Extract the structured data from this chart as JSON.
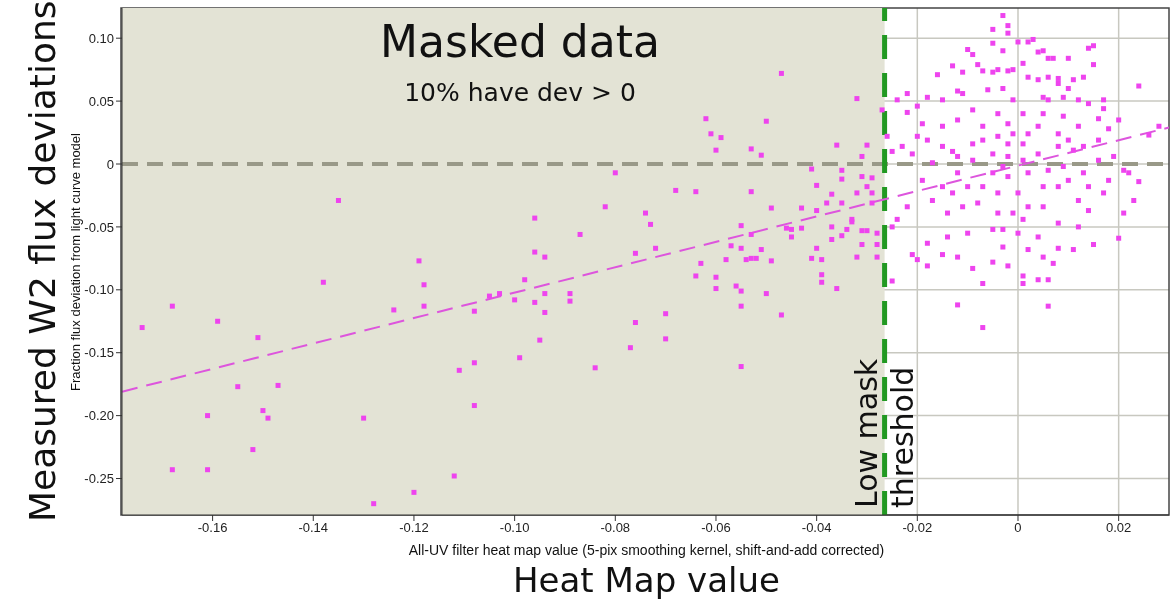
{
  "chart_data": {
    "type": "scatter",
    "xlabel": "All-UV filter heat map value (5-pix smoothing kernel, shift-and-add corrected)",
    "ylabel": "Fraction flux deviation from light curve model",
    "annotations": [
      "Masked data",
      "10% have dev > 0",
      "Measured W2 flux deviations",
      "Heat Map value"
    ],
    "xlim": [
      -0.178,
      0.03
    ],
    "ylim": [
      -0.279,
      0.124
    ],
    "xticks": [
      -0.16,
      -0.14,
      -0.12,
      {
        "value": -0.1,
        "label": "-0.10"
      },
      -0.08,
      -0.06,
      -0.04,
      -0.02,
      0,
      0.02
    ],
    "yticks": [
      {
        "value": 0.1,
        "label": "0.10"
      },
      0.05,
      0,
      -0.05,
      {
        "value": -0.1,
        "label": "-0.10"
      },
      -0.15,
      {
        "value": -0.2,
        "label": "-0.20"
      },
      -0.25
    ],
    "grid": true,
    "ref_lines": [
      {
        "axis": "y",
        "value": 0,
        "color": "#999988",
        "line_style": "dashed"
      },
      {
        "axis": "x",
        "value": -0.0265,
        "label": "Low mask threshold",
        "color": "#229922",
        "line_style": "dashed"
      }
    ],
    "bands": [
      {
        "axis": "x",
        "from": -0.178,
        "to": -0.0265,
        "color": "#e3e3d5"
      }
    ],
    "series": [
      {
        "color": "#ee44ee",
        "marker": "square",
        "x": [
          -0.174,
          -0.168,
          -0.159,
          -0.151,
          -0.155,
          -0.147,
          -0.161,
          -0.15,
          -0.149,
          -0.152,
          -0.168,
          -0.161,
          -0.135,
          -0.138,
          -0.124,
          -0.13,
          -0.128,
          -0.119,
          -0.118,
          -0.118,
          -0.12,
          -0.112,
          -0.111,
          -0.108,
          -0.108,
          -0.108,
          -0.105,
          -0.103,
          -0.1,
          -0.099,
          -0.098,
          -0.096,
          -0.096,
          -0.096,
          -0.047,
          -0.032,
          -0.027,
          -0.062,
          -0.05,
          -0.061,
          -0.059,
          -0.06,
          -0.053,
          -0.051,
          -0.036,
          -0.03,
          -0.031,
          -0.08,
          -0.041,
          -0.035,
          -0.035,
          -0.031,
          -0.029,
          -0.03,
          -0.068,
          -0.064,
          -0.053,
          -0.04,
          -0.037,
          -0.032,
          -0.029,
          -0.082,
          -0.049,
          -0.043,
          -0.04,
          -0.038,
          -0.035,
          -0.029,
          -0.074,
          -0.073,
          -0.055,
          -0.046,
          -0.045,
          -0.043,
          -0.037,
          -0.033,
          -0.033,
          -0.034,
          -0.087,
          -0.053,
          -0.045,
          -0.037,
          -0.035,
          -0.031,
          -0.03,
          -0.028,
          -0.057,
          -0.055,
          -0.051,
          -0.04,
          -0.031,
          -0.028,
          -0.094,
          -0.076,
          -0.072,
          -0.058,
          -0.054,
          -0.053,
          -0.052,
          -0.049,
          -0.041,
          -0.039,
          -0.032,
          -0.028,
          -0.063,
          -0.064,
          -0.06,
          -0.039,
          -0.039,
          -0.025,
          -0.06,
          -0.056,
          -0.055,
          -0.05,
          -0.036,
          -0.094,
          -0.089,
          -0.089,
          -0.094,
          -0.055,
          -0.047,
          -0.07,
          -0.076,
          -0.095,
          -0.07,
          -0.077,
          -0.084,
          -0.055,
          -0.003,
          -0.002,
          -0.005,
          -0.002,
          -0.005,
          -0.003,
          0,
          0.002,
          0.003,
          0.004,
          0.005,
          0.006,
          0.007,
          0.01,
          0.014,
          0.015,
          0.015,
          -0.01,
          -0.009,
          -0.013,
          -0.011,
          -0.008,
          -0.016,
          -0.007,
          -0.005,
          -0.004,
          -0.002,
          -0.001,
          0.001,
          0.002,
          0.004,
          0.006,
          0.008,
          0.01,
          0.013,
          0.024,
          0.017,
          0.017,
          0.02,
          -0.022,
          -0.024,
          -0.018,
          -0.02,
          -0.022,
          -0.015,
          -0.012,
          -0.011,
          -0.006,
          -0.003,
          -0.001,
          0.005,
          0.009,
          0.012,
          0.014,
          0.016,
          0.018,
          0.026,
          0.028,
          -0.026,
          -0.025,
          -0.023,
          -0.02,
          -0.018,
          -0.015,
          -0.013,
          -0.012,
          -0.009,
          -0.007,
          -0.004,
          -0.001,
          0.004,
          0.008,
          0.01,
          0.013,
          0.016,
          0.019,
          0.021,
          0.024,
          0.023,
          0.021,
          0.02,
          0.015,
          0.011,
          0.008,
          0.005,
          0.007,
          0.004,
          0.006,
          0.001,
          0.001,
          0.006,
          -0.002,
          -0.005,
          -0.007,
          -0.012,
          -0.007,
          -0.009,
          -0.012,
          -0.015,
          -0.018,
          -0.021,
          -0.02,
          -0.018,
          -0.025,
          -0.024,
          -0.022,
          -0.017,
          -0.014,
          -0.011,
          -0.01,
          -0.014,
          -0.005,
          -0.003,
          0,
          0.002,
          0.004,
          0.008,
          0.012,
          0.014,
          0.017,
          0.018,
          0.022,
          -0.019,
          -0.015,
          -0.012,
          -0.009,
          -0.005,
          -0.003,
          -0.002,
          0.001,
          0.004,
          0.002,
          0.006,
          0.009,
          0.005,
          0.008,
          0.01,
          0.013,
          0,
          -0.004,
          -0.007,
          -0.008,
          -0.004,
          -0.001,
          0.002,
          0.005,
          0.001,
          -0.003,
          -0.002,
          -0.005,
          -0.01,
          -0.013,
          -0.017,
          -0.021,
          0.012,
          0.014,
          0.016,
          0.011,
          0.008,
          0.001,
          -0.002,
          -0.007,
          -0.004,
          0.001,
          0.005,
          0.009,
          0.012,
          -0.009,
          -0.012,
          -0.015,
          -0.019,
          -0.002,
          0.002,
          0.006,
          0.008,
          0.011
        ],
        "values": [
          -0.13,
          -0.113,
          -0.125,
          -0.138,
          -0.177,
          -0.176,
          -0.2,
          -0.196,
          -0.202,
          -0.227,
          -0.243,
          -0.243,
          -0.029,
          -0.094,
          -0.116,
          -0.202,
          -0.27,
          -0.077,
          -0.096,
          -0.113,
          -0.261,
          -0.248,
          -0.164,
          -0.158,
          -0.192,
          -0.117,
          -0.105,
          -0.103,
          -0.108,
          -0.154,
          -0.092,
          -0.043,
          -0.07,
          -0.11,
          0.072,
          0.052,
          0.043,
          0.036,
          0.034,
          0.024,
          0.021,
          0.011,
          0.012,
          0.007,
          0.015,
          0.015,
          0.006,
          -0.007,
          -0.004,
          -0.005,
          -0.012,
          -0.01,
          -0.011,
          -0.018,
          -0.021,
          -0.022,
          -0.022,
          -0.017,
          -0.024,
          -0.023,
          -0.023,
          -0.034,
          -0.035,
          -0.035,
          -0.037,
          -0.031,
          -0.031,
          -0.031,
          -0.039,
          -0.048,
          -0.049,
          -0.051,
          -0.052,
          -0.051,
          -0.05,
          -0.044,
          -0.046,
          -0.052,
          -0.056,
          -0.056,
          -0.058,
          -0.06,
          -0.057,
          -0.053,
          -0.053,
          -0.055,
          -0.065,
          -0.067,
          -0.068,
          -0.067,
          -0.064,
          -0.064,
          -0.074,
          -0.071,
          -0.067,
          -0.076,
          -0.076,
          -0.075,
          -0.075,
          -0.077,
          -0.075,
          -0.076,
          -0.074,
          -0.074,
          -0.079,
          -0.089,
          -0.09,
          -0.088,
          -0.094,
          -0.093,
          -0.099,
          -0.097,
          -0.101,
          -0.103,
          -0.099,
          -0.103,
          -0.103,
          -0.109,
          -0.118,
          -0.113,
          -0.12,
          -0.119,
          -0.126,
          -0.14,
          -0.139,
          -0.146,
          -0.162,
          -0.161,
          0.118,
          0.11,
          0.107,
          0.104,
          0.096,
          0.09,
          0.097,
          0.097,
          0.099,
          0.089,
          0.09,
          0.084,
          0.084,
          0.084,
          0.092,
          0.094,
          0.079,
          0.091,
          0.087,
          0.078,
          0.073,
          0.079,
          0.071,
          0.074,
          0.073,
          0.075,
          0.074,
          0.075,
          0.08,
          0.069,
          0.067,
          0.069,
          0.064,
          0.06,
          0.069,
          0.062,
          0.051,
          0.044,
          0.035,
          0.056,
          0.051,
          0.053,
          0.046,
          0.041,
          0.051,
          0.058,
          0.056,
          0.059,
          0.06,
          0.051,
          0.053,
          0.053,
          0.051,
          0.048,
          0.036,
          0.028,
          0.023,
          0.03,
          0.022,
          0.01,
          0.014,
          0.022,
          0.019,
          0.014,
          0.01,
          0.006,
          0.016,
          0.019,
          0.022,
          0.024,
          0.03,
          0.024,
          0.019,
          0.014,
          0.019,
          0.006,
          -0.005,
          -0.014,
          -0.029,
          -0.039,
          -0.059,
          -0.064,
          -0.068,
          -0.067,
          -0.074,
          -0.079,
          -0.092,
          -0.092,
          -0.089,
          -0.095,
          -0.113,
          -0.081,
          -0.078,
          -0.095,
          -0.112,
          -0.13,
          -0.083,
          -0.074,
          -0.072,
          -0.081,
          -0.072,
          -0.076,
          -0.063,
          -0.05,
          -0.044,
          -0.034,
          -0.029,
          -0.039,
          -0.034,
          -0.055,
          -0.058,
          -0.052,
          -0.066,
          -0.055,
          -0.068,
          -0.058,
          -0.047,
          -0.05,
          -0.037,
          -0.023,
          -0.013,
          -0.007,
          -0.013,
          -0.018,
          -0.007,
          0.003,
          0.008,
          -0.002,
          -0.01,
          0.003,
          0.008,
          -0.007,
          -0.005,
          -0.002,
          -0.018,
          -0.018,
          -0.013,
          -0.007,
          -0.023,
          -0.023,
          -0.018,
          -0.031,
          -0.039,
          -0.039,
          -0.034,
          -0.034,
          -0.044,
          -0.052,
          0.006,
          -0.007,
          -0.018,
          -0.023,
          0.001,
          0.008,
          -0.029,
          -0.018,
          0.003,
          0.011,
          0.014,
          0.016,
          0.016,
          0.03,
          0.04,
          0.04,
          0.04,
          0.038,
          0.03,
          0.043,
          0.035,
          0.03,
          0.032,
          0.032,
          0.024,
          0.051,
          0.068,
          0.067
        ]
      },
      {
        "type": "line",
        "color": "#dd55dd",
        "line_style": "dashed",
        "marker": "none",
        "x": [
          -0.178,
          0.03
        ],
        "values": [
          -0.181,
          0.029
        ]
      }
    ]
  }
}
